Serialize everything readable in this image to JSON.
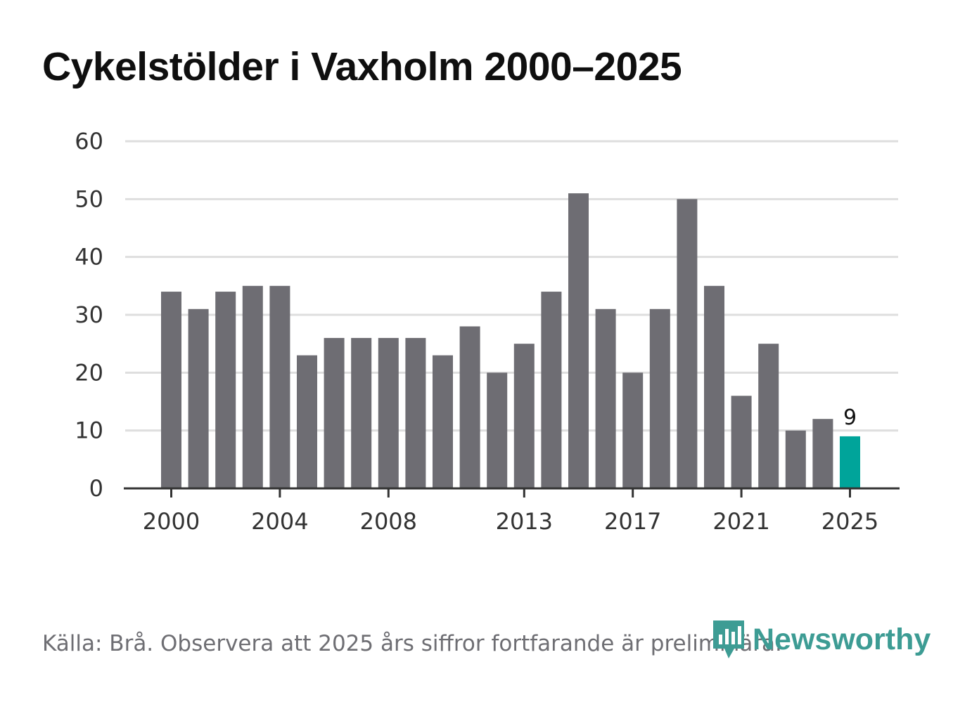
{
  "chart_data": {
    "type": "bar",
    "title": "Cykelstölder i Vaxholm 2000–2025",
    "categories": [
      "2000",
      "2001",
      "2002",
      "2003",
      "2004",
      "2005",
      "2006",
      "2007",
      "2008",
      "2009",
      "2010",
      "2011",
      "2012",
      "2013",
      "2014",
      "2015",
      "2016",
      "2017",
      "2018",
      "2019",
      "2020",
      "2021",
      "2022",
      "2023",
      "2024",
      "2025"
    ],
    "values": [
      34,
      31,
      34,
      35,
      35,
      23,
      26,
      26,
      26,
      26,
      23,
      28,
      20,
      25,
      34,
      51,
      31,
      20,
      31,
      50,
      35,
      16,
      25,
      10,
      12,
      9
    ],
    "x_tick_labels": [
      "2000",
      "2004",
      "2008",
      "2013",
      "2017",
      "2021",
      "2025"
    ],
    "y_ticks": [
      0,
      10,
      20,
      30,
      40,
      50,
      60
    ],
    "ylim": [
      0,
      60
    ],
    "xlabel": "",
    "ylabel": "",
    "highlight": {
      "category": "2025",
      "label": "9"
    },
    "grid": true
  },
  "source": "Källa: Brå. Observera att 2025 års siffror fortfarande är preliminära.",
  "brand": {
    "name": "Newsworthy"
  },
  "colors": {
    "bar": "#6e6d73",
    "highlight": "#00a49a",
    "grid": "#dedede",
    "axis": "#333333",
    "brand": "#3d9c94",
    "text_muted": "#6e6e73"
  }
}
